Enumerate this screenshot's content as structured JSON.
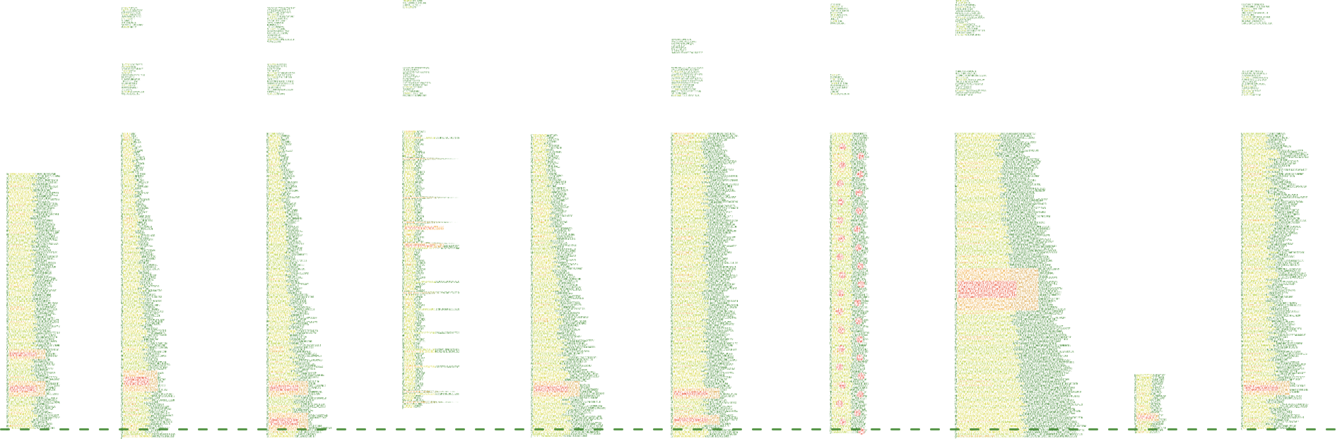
{
  "figure": {
    "kind": "spectrogram-strip",
    "background": "#ffffff",
    "palette": {
      "low": "#2f7d1e",
      "mid_low": "#5fa52a",
      "mid": "#c8d832",
      "high": "#f0e23a",
      "peak": "#f3a13a",
      "max": "#e8402e"
    },
    "segments": [
      {
        "name": "segment-1",
        "shape": "dense low block with red band"
      },
      {
        "name": "segment-2",
        "shape": "tapered column with upper patches"
      },
      {
        "name": "segment-3",
        "shape": "tall dense column with red base"
      },
      {
        "name": "segment-4",
        "shape": "thin stem with horizontal spikes"
      },
      {
        "name": "segment-5",
        "shape": "rising diagonal column"
      },
      {
        "name": "segment-6",
        "shape": "banded column with harmonics"
      },
      {
        "name": "segment-7",
        "shape": "braided narrow column with red dots"
      },
      {
        "name": "segment-8",
        "shape": "wide saturated block with diffuse edge"
      },
      {
        "name": "segment-9",
        "shape": "small double tick near baseline"
      },
      {
        "name": "segment-10",
        "shape": "fringed column with upper patches"
      }
    ]
  }
}
